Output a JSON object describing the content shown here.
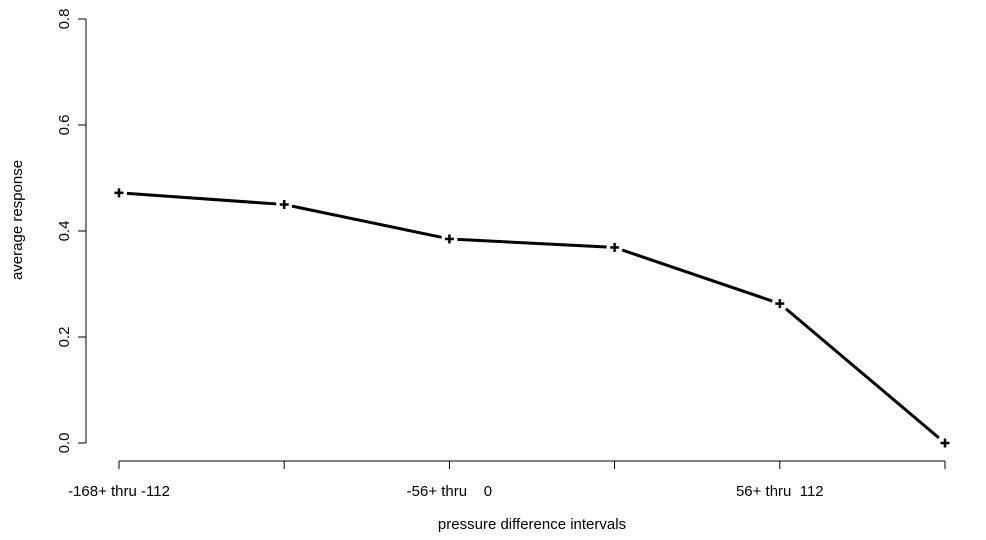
{
  "chart_data": {
    "type": "line",
    "xlabel": "pressure difference intervals",
    "ylabel": "average response",
    "ylim": [
      0,
      0.8
    ],
    "yticks": [
      "0.0",
      "0.2",
      "0.4",
      "0.6",
      "0.8"
    ],
    "yticks_values": [
      0,
      0.2,
      0.4,
      0.6,
      0.8
    ],
    "x_positions": [
      1,
      2,
      3,
      4,
      5,
      6
    ],
    "x_tick_labels": [
      "-168+ thru -112",
      "",
      "-56+ thru    0",
      "",
      "56+ thru  112",
      ""
    ],
    "series": [
      {
        "values": [
          0.472,
          0.45,
          0.385,
          0.369,
          0.263,
          0.0
        ],
        "marker": "plus",
        "color": "#000000"
      }
    ],
    "grid": false,
    "legend": "none"
  }
}
